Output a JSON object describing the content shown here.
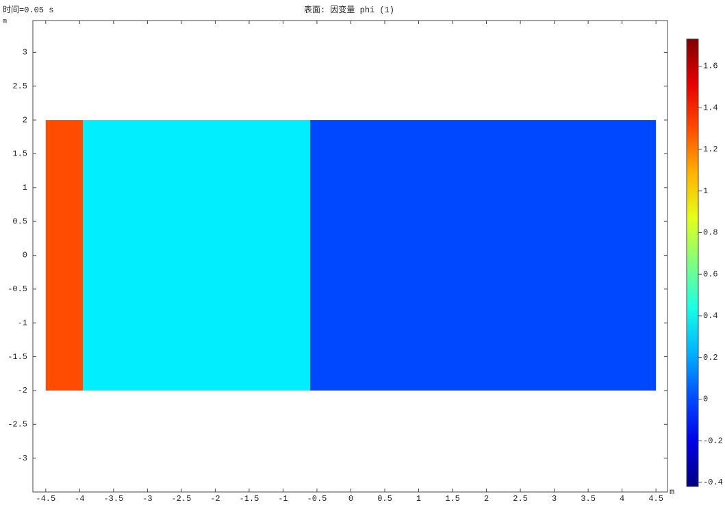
{
  "chart_data": {
    "type": "surface",
    "time_label": "时间=0.05 s",
    "title": "表面: 因变量 phi (1)",
    "x_unit": "m",
    "y_unit": "m",
    "xlim": [
      -4.69,
      4.67
    ],
    "ylim": [
      -3.5,
      3.47
    ],
    "xticks": [
      -4.5,
      -4,
      -3.5,
      -3,
      -2.5,
      -2,
      -1.5,
      -1,
      -0.5,
      0,
      0.5,
      1,
      1.5,
      2,
      2.5,
      3,
      3.5,
      4,
      4.5
    ],
    "yticks": [
      -3,
      -2.5,
      -2,
      -1.5,
      -1,
      -0.5,
      0,
      0.5,
      1,
      1.5,
      2,
      2.5,
      3
    ],
    "colormap": "jet",
    "clim": [
      -0.42,
      1.73
    ],
    "cticks": [
      -0.4,
      -0.2,
      0,
      0.2,
      0.4,
      0.6,
      0.8,
      1,
      1.2,
      1.4,
      1.6
    ],
    "domain_ylim": [
      -2,
      2
    ],
    "regions": [
      {
        "xlim": [
          -4.5,
          -3.95
        ],
        "value": 1.3
      },
      {
        "xlim": [
          -3.95,
          -0.6
        ],
        "value": 0.35
      },
      {
        "xlim": [
          -0.6,
          4.5
        ],
        "value": 0
      }
    ]
  }
}
